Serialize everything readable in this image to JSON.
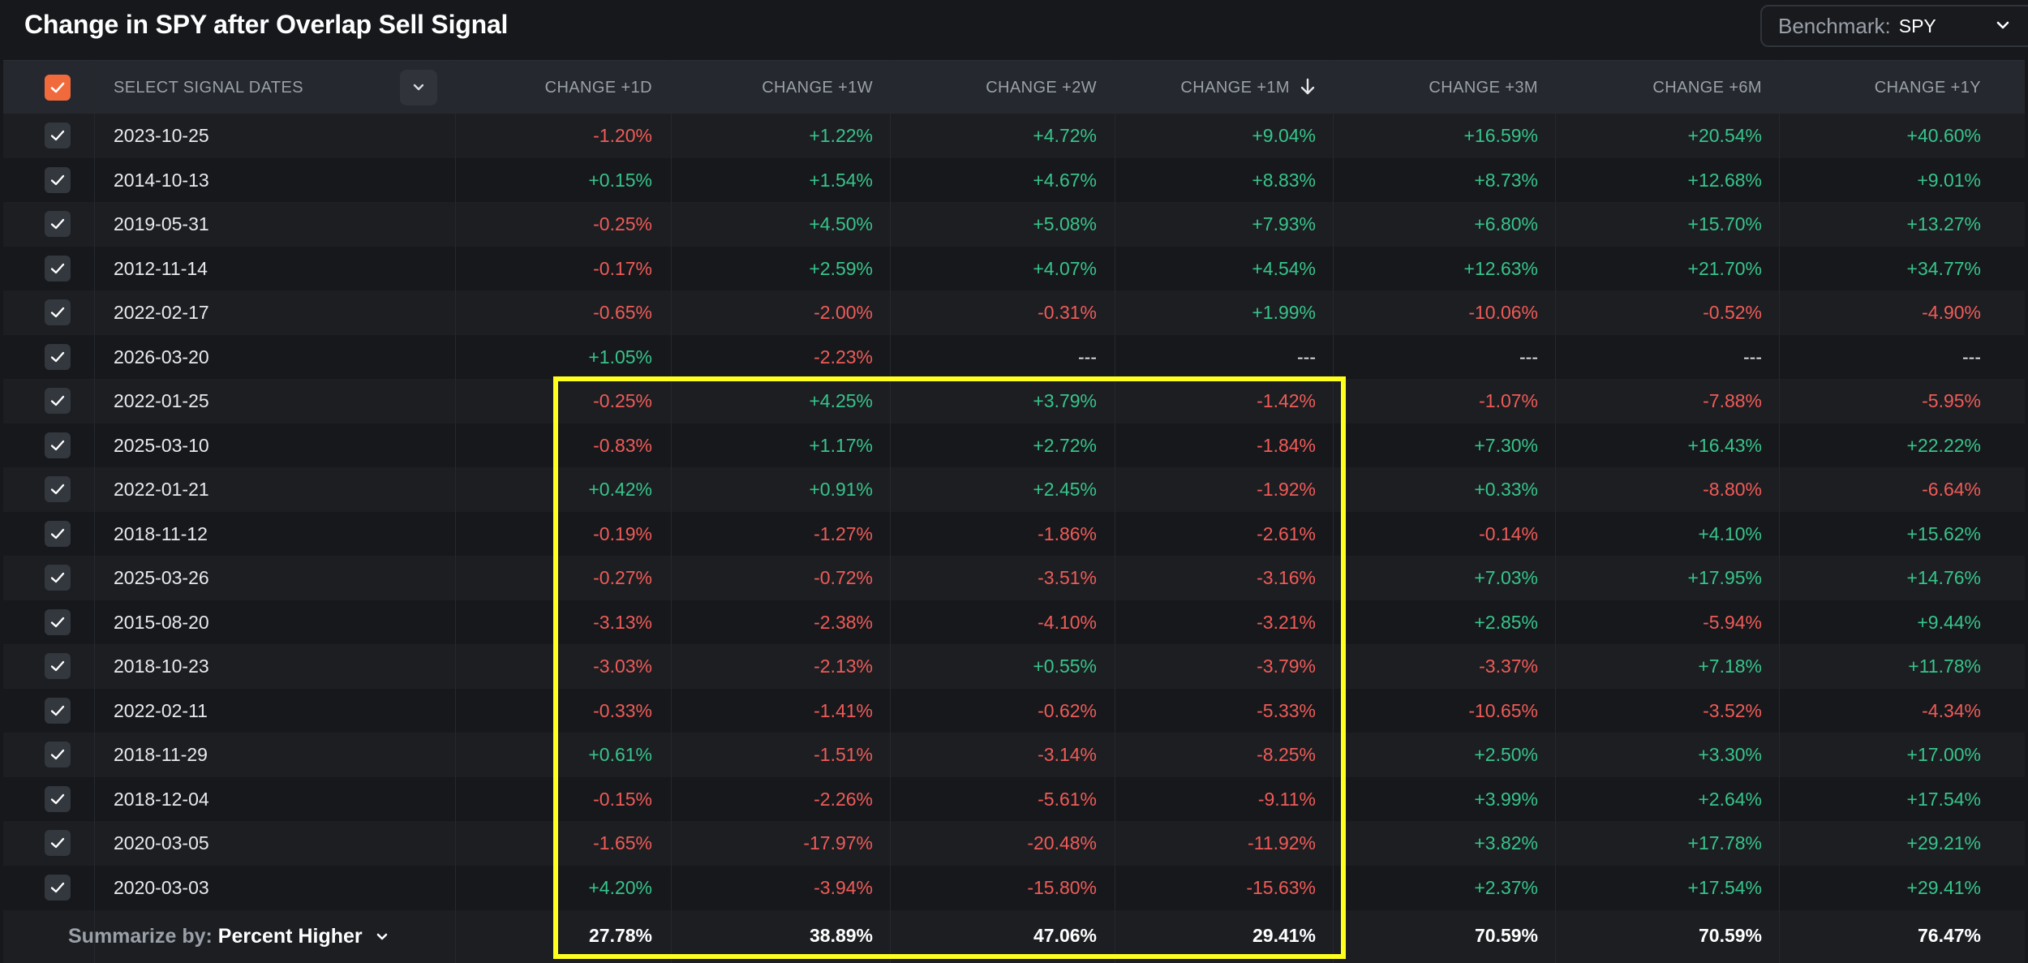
{
  "title": "Change in SPY after Overlap Sell Signal",
  "benchmark": {
    "label": "Benchmark:",
    "value": "SPY"
  },
  "table": {
    "select_label": "SELECT SIGNAL DATES",
    "columns": [
      "CHANGE +1D",
      "CHANGE +1W",
      "CHANGE +2W",
      "CHANGE +1M",
      "CHANGE +3M",
      "CHANGE +6M",
      "CHANGE +1Y"
    ],
    "sorted_column": "CHANGE +1M",
    "sort_direction": "descending",
    "rows": [
      {
        "date": "2023-10-25",
        "values": [
          "-1.20%",
          "+1.22%",
          "+4.72%",
          "+9.04%",
          "+16.59%",
          "+20.54%",
          "+40.60%"
        ]
      },
      {
        "date": "2014-10-13",
        "values": [
          "+0.15%",
          "+1.54%",
          "+4.67%",
          "+8.83%",
          "+8.73%",
          "+12.68%",
          "+9.01%"
        ]
      },
      {
        "date": "2019-05-31",
        "values": [
          "-0.25%",
          "+4.50%",
          "+5.08%",
          "+7.93%",
          "+6.80%",
          "+15.70%",
          "+13.27%"
        ]
      },
      {
        "date": "2012-11-14",
        "values": [
          "-0.17%",
          "+2.59%",
          "+4.07%",
          "+4.54%",
          "+12.63%",
          "+21.70%",
          "+34.77%"
        ]
      },
      {
        "date": "2022-02-17",
        "values": [
          "-0.65%",
          "-2.00%",
          "-0.31%",
          "+1.99%",
          "-10.06%",
          "-0.52%",
          "-4.90%"
        ]
      },
      {
        "date": "2026-03-20",
        "values": [
          "+1.05%",
          "-2.23%",
          "---",
          "---",
          "---",
          "---",
          "---"
        ]
      },
      {
        "date": "2022-01-25",
        "values": [
          "-0.25%",
          "+4.25%",
          "+3.79%",
          "-1.42%",
          "-1.07%",
          "-7.88%",
          "-5.95%"
        ]
      },
      {
        "date": "2025-03-10",
        "values": [
          "-0.83%",
          "+1.17%",
          "+2.72%",
          "-1.84%",
          "+7.30%",
          "+16.43%",
          "+22.22%"
        ]
      },
      {
        "date": "2022-01-21",
        "values": [
          "+0.42%",
          "+0.91%",
          "+2.45%",
          "-1.92%",
          "+0.33%",
          "-8.80%",
          "-6.64%"
        ]
      },
      {
        "date": "2018-11-12",
        "values": [
          "-0.19%",
          "-1.27%",
          "-1.86%",
          "-2.61%",
          "-0.14%",
          "+4.10%",
          "+15.62%"
        ]
      },
      {
        "date": "2025-03-26",
        "values": [
          "-0.27%",
          "-0.72%",
          "-3.51%",
          "-3.16%",
          "+7.03%",
          "+17.95%",
          "+14.76%"
        ]
      },
      {
        "date": "2015-08-20",
        "values": [
          "-3.13%",
          "-2.38%",
          "-4.10%",
          "-3.21%",
          "+2.85%",
          "-5.94%",
          "+9.44%"
        ]
      },
      {
        "date": "2018-10-23",
        "values": [
          "-3.03%",
          "-2.13%",
          "+0.55%",
          "-3.79%",
          "-3.37%",
          "+7.18%",
          "+11.78%"
        ]
      },
      {
        "date": "2022-02-11",
        "values": [
          "-0.33%",
          "-1.41%",
          "-0.62%",
          "-5.33%",
          "-10.65%",
          "-3.52%",
          "-4.34%"
        ]
      },
      {
        "date": "2018-11-29",
        "values": [
          "+0.61%",
          "-1.51%",
          "-3.14%",
          "-8.25%",
          "+2.50%",
          "+3.30%",
          "+17.00%"
        ]
      },
      {
        "date": "2018-12-04",
        "values": [
          "-0.15%",
          "-2.26%",
          "-5.61%",
          "-9.11%",
          "+3.99%",
          "+2.64%",
          "+17.54%"
        ]
      },
      {
        "date": "2020-03-05",
        "values": [
          "-1.65%",
          "-17.97%",
          "-20.48%",
          "-11.92%",
          "+3.82%",
          "+17.78%",
          "+29.21%"
        ]
      },
      {
        "date": "2020-03-03",
        "values": [
          "+4.20%",
          "-3.94%",
          "-15.80%",
          "-15.63%",
          "+2.37%",
          "+17.54%",
          "+29.41%"
        ]
      }
    ],
    "summary": {
      "label": "Summarize by:",
      "value": "Percent Higher",
      "values": [
        "27.78%",
        "38.89%",
        "47.06%",
        "29.41%",
        "70.59%",
        "70.59%",
        "76.47%"
      ]
    }
  },
  "colors": {
    "positive": "#37c48a",
    "negative": "#f05b57",
    "accent": "#f06a3c",
    "highlight_box": "#ffff1e"
  }
}
